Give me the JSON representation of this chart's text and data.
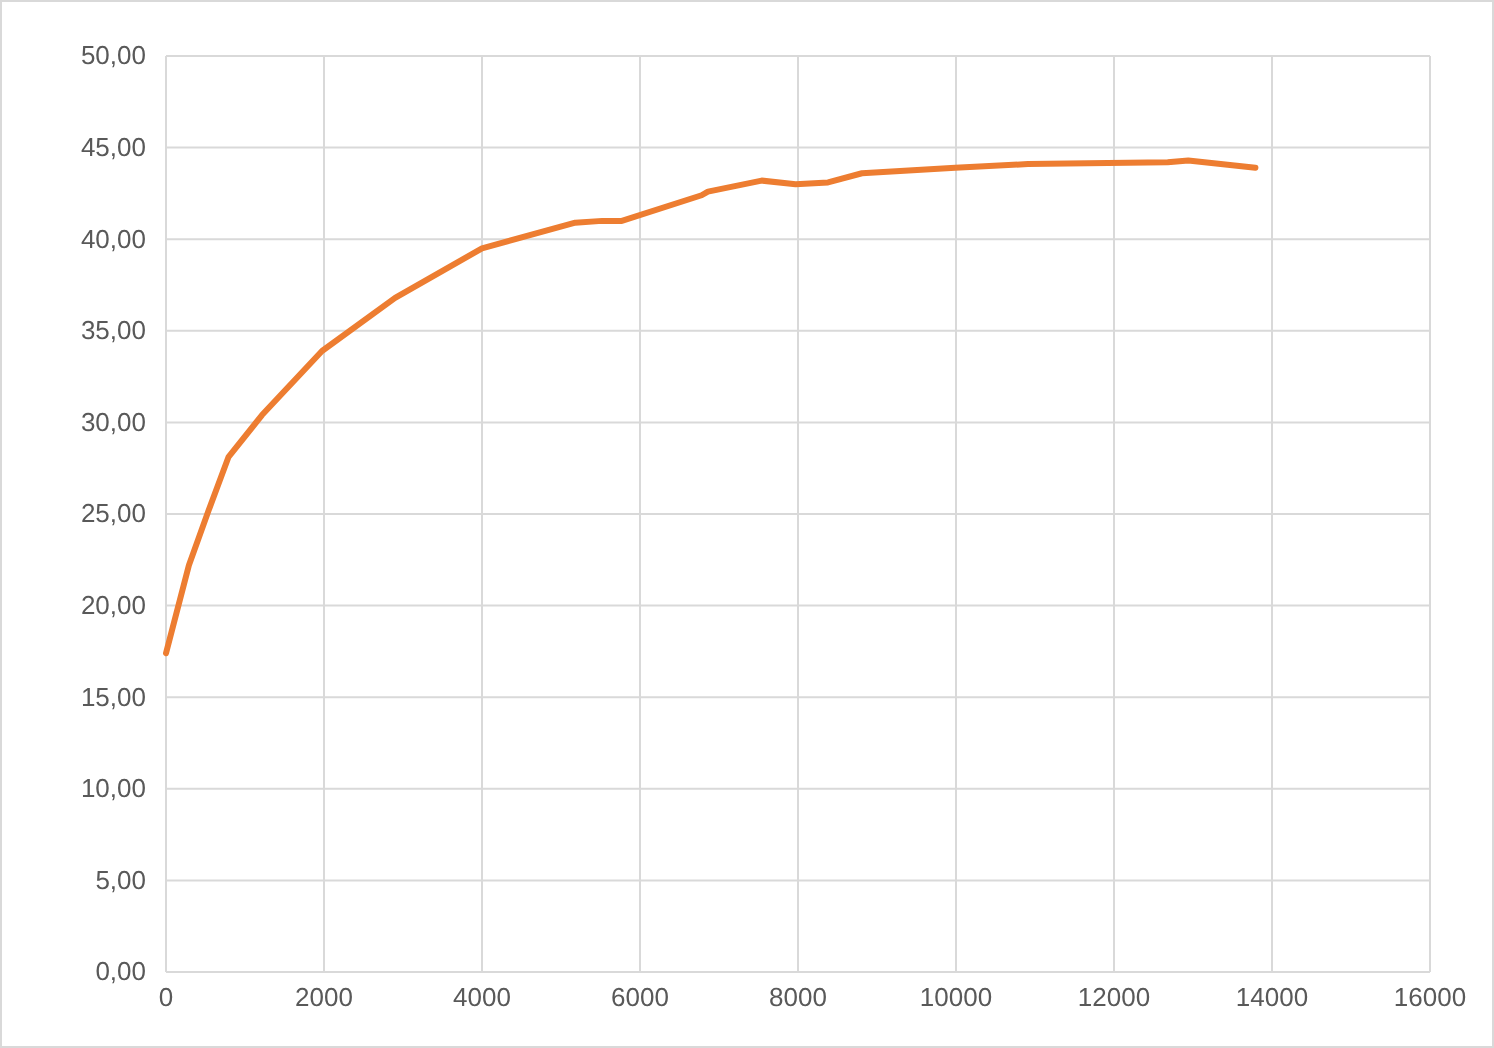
{
  "chart_data": {
    "type": "line",
    "x": [
      0,
      290,
      540,
      790,
      1215,
      1975,
      2900,
      4000,
      5180,
      5520,
      5770,
      6780,
      6860,
      7540,
      7970,
      8380,
      8810,
      9990,
      10910,
      12680,
      12940,
      13790
    ],
    "series": [
      {
        "color": "#ed7d31",
        "values": [
          17.4,
          22.2,
          25.2,
          28.1,
          30.4,
          33.9,
          36.8,
          39.5,
          40.9,
          41.0,
          41.0,
          42.4,
          42.6,
          43.2,
          43.0,
          43.1,
          43.6,
          43.9,
          44.1,
          44.2,
          44.3,
          43.9
        ]
      }
    ],
    "xlim": [
      0,
      16000
    ],
    "xticks": [
      0,
      2000,
      4000,
      6000,
      8000,
      10000,
      12000,
      14000,
      16000
    ],
    "ylim": [
      0,
      50
    ],
    "yticks": [
      {
        "value": 0,
        "label": "0,00"
      },
      {
        "value": 5,
        "label": "5,00"
      },
      {
        "value": 10,
        "label": "10,00"
      },
      {
        "value": 15,
        "label": "15,00"
      },
      {
        "value": 20,
        "label": "20,00"
      },
      {
        "value": 25,
        "label": "25,00"
      },
      {
        "value": 30,
        "label": "30,00"
      },
      {
        "value": 35,
        "label": "35,00"
      },
      {
        "value": 40,
        "label": "40,00"
      },
      {
        "value": 45,
        "label": "45,00"
      },
      {
        "value": 50,
        "label": "50,00"
      }
    ],
    "grid": true,
    "marker": "none",
    "line_style": "solid"
  }
}
